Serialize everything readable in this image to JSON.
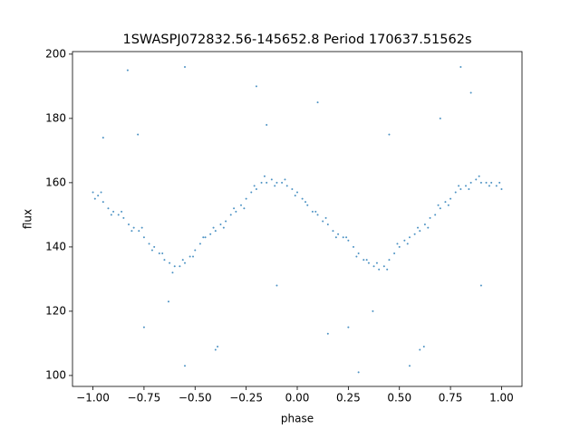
{
  "chart_data": {
    "type": "scatter",
    "title": "1SWASPJ072832.56-145652.8 Period 170637.51562s",
    "x_label": "phase",
    "y_label": "flux",
    "color": "#1f77b4",
    "xlim": [
      -1.1,
      1.1
    ],
    "ylim": [
      96.6,
      200.8
    ],
    "xticks": [
      {
        "value": -1,
        "label": "−1.00"
      },
      {
        "value": -0.75,
        "label": "−0.75"
      },
      {
        "value": -0.5,
        "label": "−0.50"
      },
      {
        "value": -0.25,
        "label": "−0.25"
      },
      {
        "value": 0,
        "label": "0.00"
      },
      {
        "value": 0.25,
        "label": "0.25"
      },
      {
        "value": 0.5,
        "label": "0.50"
      },
      {
        "value": 0.75,
        "label": "0.75"
      },
      {
        "value": 1,
        "label": "1.00"
      }
    ],
    "yticks": [
      100,
      120,
      140,
      160,
      180,
      200
    ],
    "x": [
      -1.0,
      -0.975,
      -0.95,
      -0.925,
      -0.9,
      -0.875,
      -0.85,
      -0.825,
      -0.8,
      -0.775,
      -0.75,
      -0.725,
      -0.7,
      -0.675,
      -0.65,
      -0.625,
      -0.6,
      -0.575,
      -0.55,
      -0.525,
      -0.5,
      -0.475,
      -0.45,
      -0.425,
      -0.4,
      -0.375,
      -0.35,
      -0.325,
      -0.3,
      -0.275,
      -0.25,
      -0.225,
      -0.2,
      -0.175,
      -0.15,
      -0.125,
      -0.1,
      -0.075,
      -0.05,
      -0.025,
      0,
      0.025,
      0.05,
      0.075,
      0.1,
      0.125,
      0.15,
      0.175,
      0.2,
      0.225,
      0.25,
      0.275,
      0.3,
      0.325,
      0.35,
      0.375,
      0.4,
      0.425,
      0.45,
      0.475,
      0.5,
      0.525,
      0.55,
      0.575,
      0.6,
      0.625,
      0.65,
      0.675,
      0.7,
      0.725,
      0.75,
      0.775,
      0.8,
      0.825,
      0.85,
      0.875,
      0.9,
      0.925,
      0.95,
      0.975,
      1.0,
      -0.99,
      -0.96,
      -0.91,
      -0.86,
      -0.81,
      -0.76,
      -0.71,
      -0.66,
      -0.61,
      -0.56,
      -0.51,
      -0.46,
      -0.41,
      -0.36,
      -0.31,
      -0.26,
      -0.21,
      -0.16,
      -0.11,
      -0.06,
      -0.01,
      0.04,
      0.09,
      0.14,
      0.19,
      0.24,
      0.29,
      0.34,
      0.39,
      0.44,
      0.49,
      0.54,
      0.59,
      0.64,
      0.69,
      0.74,
      0.79,
      0.84,
      0.89,
      0.94,
      0.99,
      -0.83,
      -0.55,
      0.8,
      -0.2,
      0.85,
      -0.78,
      0.1,
      -0.4,
      -0.39,
      0.6,
      0.62,
      -0.75,
      0.25,
      -0.63,
      0.37,
      -0.1,
      0.9,
      0.55,
      -0.55,
      0.15,
      0.45,
      -0.15,
      0.3,
      -0.95,
      0.7
    ],
    "values": [
      157,
      156,
      154,
      152,
      151,
      150,
      149,
      147,
      146,
      145,
      143,
      141,
      140,
      138,
      136,
      135,
      134,
      134,
      135,
      137,
      139,
      141,
      143,
      144,
      145,
      147,
      148,
      150,
      151,
      153,
      155,
      157,
      158,
      160,
      160,
      161,
      160,
      160,
      159,
      158,
      157,
      155,
      153,
      151,
      150,
      148,
      147,
      145,
      144,
      143,
      142,
      140,
      138,
      136,
      135,
      134,
      133,
      134,
      136,
      138,
      140,
      142,
      143,
      144,
      145,
      147,
      149,
      150,
      152,
      154,
      155,
      157,
      158,
      159,
      160,
      161,
      160,
      160,
      160,
      159,
      158,
      155,
      157,
      150,
      151,
      145,
      146,
      139,
      138,
      132,
      136,
      137,
      143,
      146,
      146,
      152,
      152,
      159,
      162,
      159,
      161,
      156,
      154,
      151,
      149,
      143,
      143,
      137,
      136,
      135,
      133,
      141,
      141,
      146,
      146,
      153,
      153,
      159,
      158,
      162,
      159,
      160,
      195,
      196,
      196,
      190,
      188,
      175,
      185,
      108,
      109,
      108,
      109,
      115,
      115,
      123,
      120,
      128,
      128,
      103,
      103,
      113,
      175,
      178,
      101,
      174,
      180
    ]
  }
}
